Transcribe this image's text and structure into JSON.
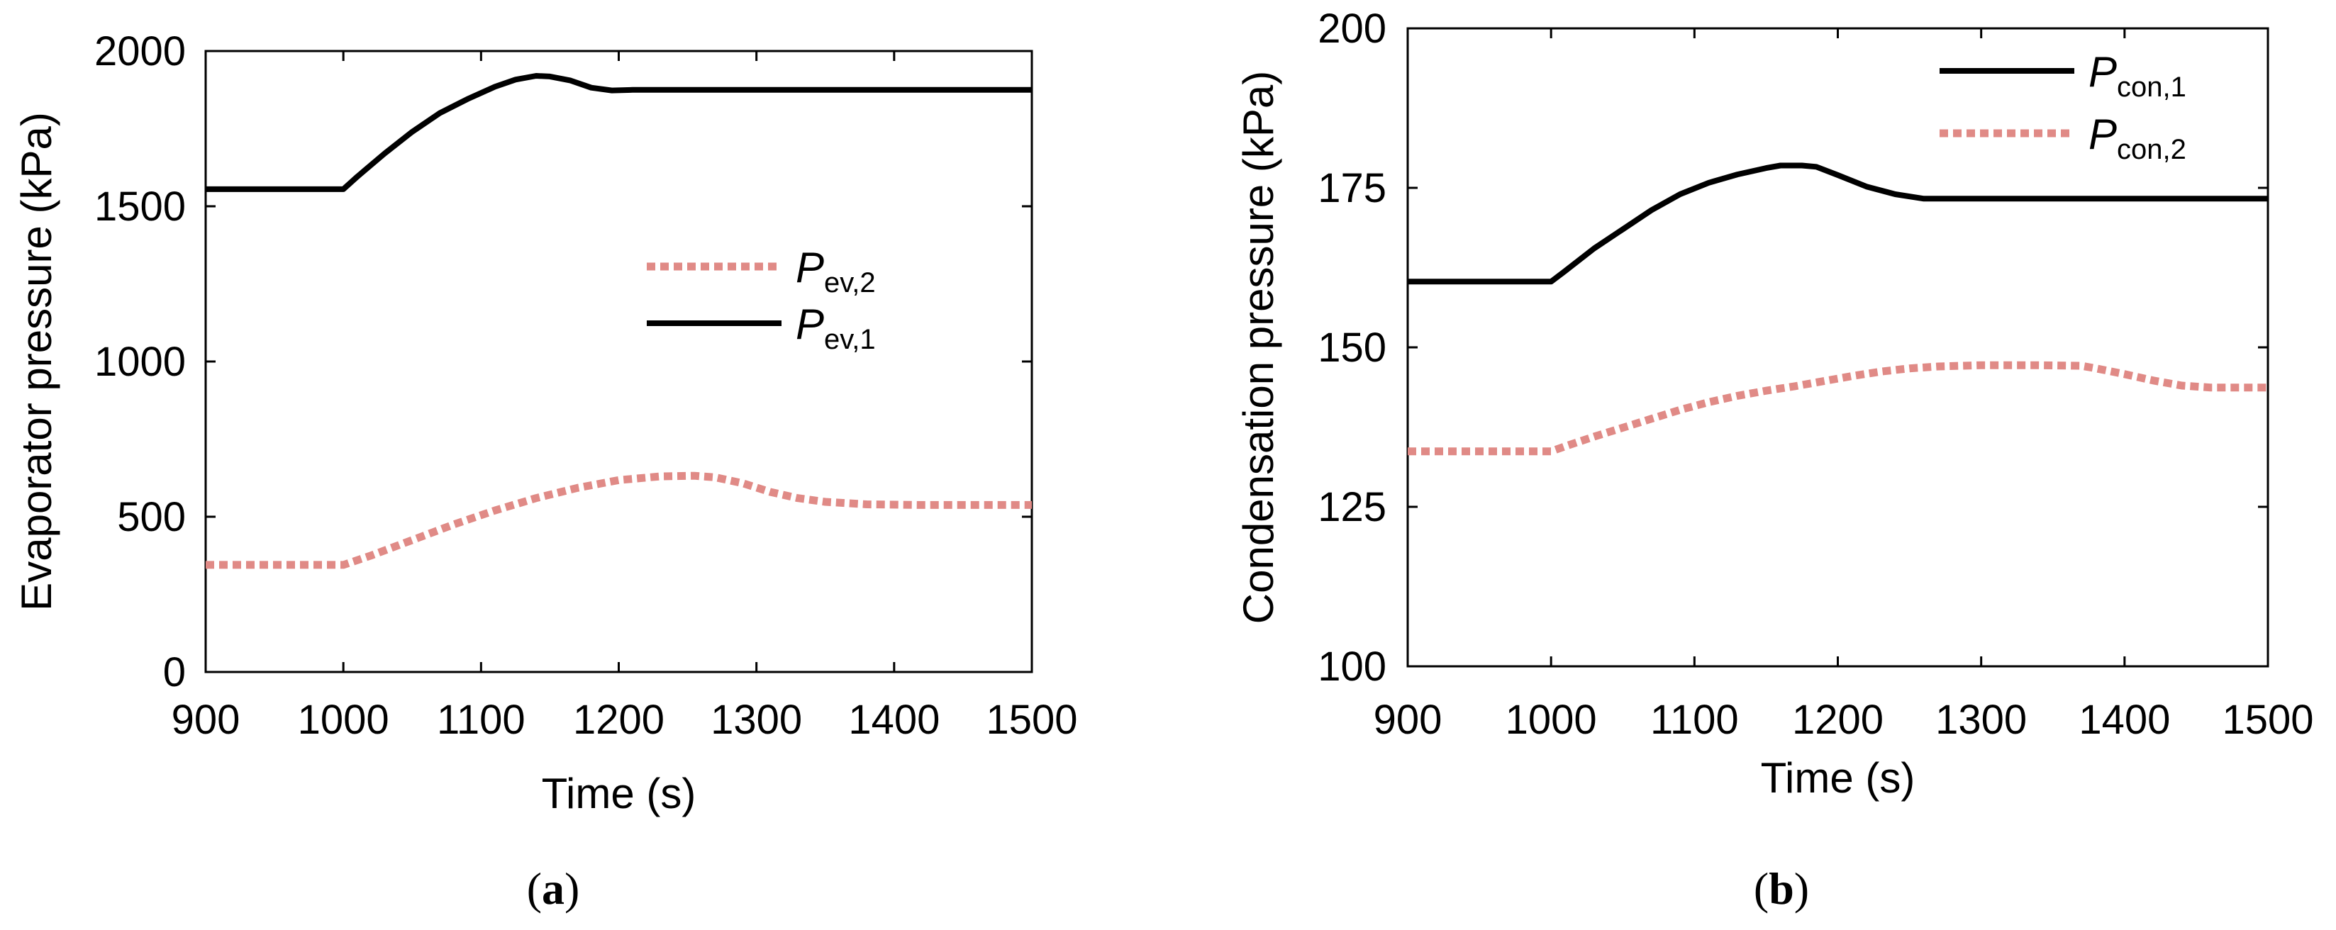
{
  "colors": {
    "series_1": "#000000",
    "series_2": "#e08a86",
    "axes": "#000000"
  },
  "chart_data": [
    {
      "type": "line",
      "panel_label": "(a)",
      "panel_letter": "a",
      "xlabel": "Time (s)",
      "ylabel": "Evaporator pressure (kPa)",
      "xlim": [
        900,
        1500
      ],
      "ylim": [
        0,
        2000
      ],
      "xticks": [
        900,
        1000,
        1100,
        1200,
        1300,
        1400,
        1500
      ],
      "yticks": [
        0,
        500,
        1000,
        1500,
        2000
      ],
      "legend_position": "middle-right",
      "legend": [
        {
          "series": 1,
          "main": "P",
          "sub": "ev,2"
        },
        {
          "series": 0,
          "main": "P",
          "sub": "ev,1"
        }
      ],
      "series": [
        {
          "name": "P_ev,1",
          "style": "solid",
          "x": [
            900,
            1000,
            1010,
            1030,
            1050,
            1070,
            1090,
            1110,
            1125,
            1140,
            1150,
            1165,
            1180,
            1195,
            1210,
            1500
          ],
          "y": [
            1555,
            1555,
            1595,
            1670,
            1740,
            1800,
            1845,
            1885,
            1908,
            1920,
            1918,
            1905,
            1882,
            1873,
            1875,
            1875
          ]
        },
        {
          "name": "P_ev,2",
          "style": "dotted",
          "x": [
            900,
            1000,
            1020,
            1050,
            1080,
            1110,
            1140,
            1170,
            1200,
            1230,
            1255,
            1270,
            1290,
            1310,
            1330,
            1350,
            1380,
            1420,
            1500
          ],
          "y": [
            345,
            345,
            375,
            425,
            475,
            520,
            560,
            593,
            618,
            630,
            632,
            627,
            608,
            580,
            560,
            548,
            540,
            538,
            538
          ]
        }
      ]
    },
    {
      "type": "line",
      "panel_label": "(b)",
      "panel_letter": "b",
      "xlabel": "Time (s)",
      "ylabel": "Condensation pressure (kPa)",
      "xlim": [
        900,
        1500
      ],
      "ylim": [
        100,
        200
      ],
      "xticks": [
        900,
        1000,
        1100,
        1200,
        1300,
        1400,
        1500
      ],
      "yticks": [
        100,
        125,
        150,
        175,
        200
      ],
      "legend_position": "top-right",
      "legend": [
        {
          "series": 0,
          "main": "P",
          "sub": "con,1"
        },
        {
          "series": 1,
          "main": "P",
          "sub": "con,2"
        }
      ],
      "series": [
        {
          "name": "P_con,1",
          "style": "solid",
          "x": [
            900,
            1000,
            1010,
            1030,
            1050,
            1070,
            1090,
            1110,
            1130,
            1150,
            1160,
            1175,
            1185,
            1200,
            1220,
            1240,
            1260,
            1500
          ],
          "y": [
            160.3,
            160.3,
            162,
            165.5,
            168.5,
            171.5,
            174,
            175.8,
            177.1,
            178.1,
            178.5,
            178.5,
            178.3,
            177,
            175.2,
            174,
            173.3,
            173.3
          ]
        },
        {
          "name": "P_con,2",
          "style": "dotted",
          "x": [
            900,
            1000,
            1010,
            1030,
            1050,
            1070,
            1090,
            1110,
            1130,
            1150,
            1170,
            1190,
            1210,
            1230,
            1250,
            1270,
            1300,
            1340,
            1370,
            1380,
            1400,
            1420,
            1440,
            1460,
            1500
          ],
          "y": [
            133.7,
            133.7,
            134.5,
            136,
            137.4,
            138.8,
            140.2,
            141.4,
            142.4,
            143.2,
            143.9,
            144.7,
            145.5,
            146.2,
            146.7,
            147,
            147.2,
            147.2,
            147.1,
            146.7,
            145.8,
            144.8,
            144,
            143.7,
            143.7
          ]
        }
      ]
    }
  ]
}
